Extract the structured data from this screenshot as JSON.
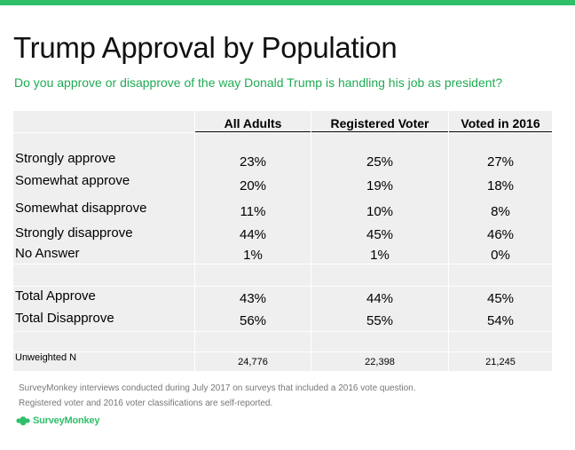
{
  "title": "Trump Approval by Population",
  "subtitle": "Do you approve or disapprove of the way Donald Trump is handling his job as president?",
  "table": {
    "columns": [
      "All Adults",
      "Registered Voter",
      "Voted in 2016"
    ],
    "rows": [
      {
        "label": "Strongly approve",
        "values": [
          "23%",
          "25%",
          "27%"
        ]
      },
      {
        "label": "Somewhat approve",
        "values": [
          "20%",
          "19%",
          "18%"
        ]
      },
      {
        "label": "Somewhat disapprove",
        "values": [
          "11%",
          "10%",
          "8%"
        ]
      },
      {
        "label": "Strongly disapprove",
        "values": [
          "44%",
          "45%",
          "46%"
        ]
      },
      {
        "label": "No Answer",
        "values": [
          "1%",
          "1%",
          "0%"
        ]
      },
      {
        "label": "Total Approve",
        "values": [
          "43%",
          "44%",
          "45%"
        ]
      },
      {
        "label": "Total Disapprove",
        "values": [
          "56%",
          "55%",
          "54%"
        ]
      },
      {
        "label": "Unweighted N",
        "values": [
          "24,776",
          "22,398",
          "21,245"
        ]
      }
    ]
  },
  "footnotes": [
    "SurveyMonkey interviews conducted during July 2017 on surveys that included a 2016 vote question.",
    "Registered voter and 2016 voter classifications are self-reported."
  ],
  "logo": {
    "text": "SurveyMonkey",
    "color": "#2fbf6a"
  },
  "colors": {
    "accent": "#2fbf6a",
    "subtitle": "#1fab54",
    "table_bg": "#efefef"
  }
}
